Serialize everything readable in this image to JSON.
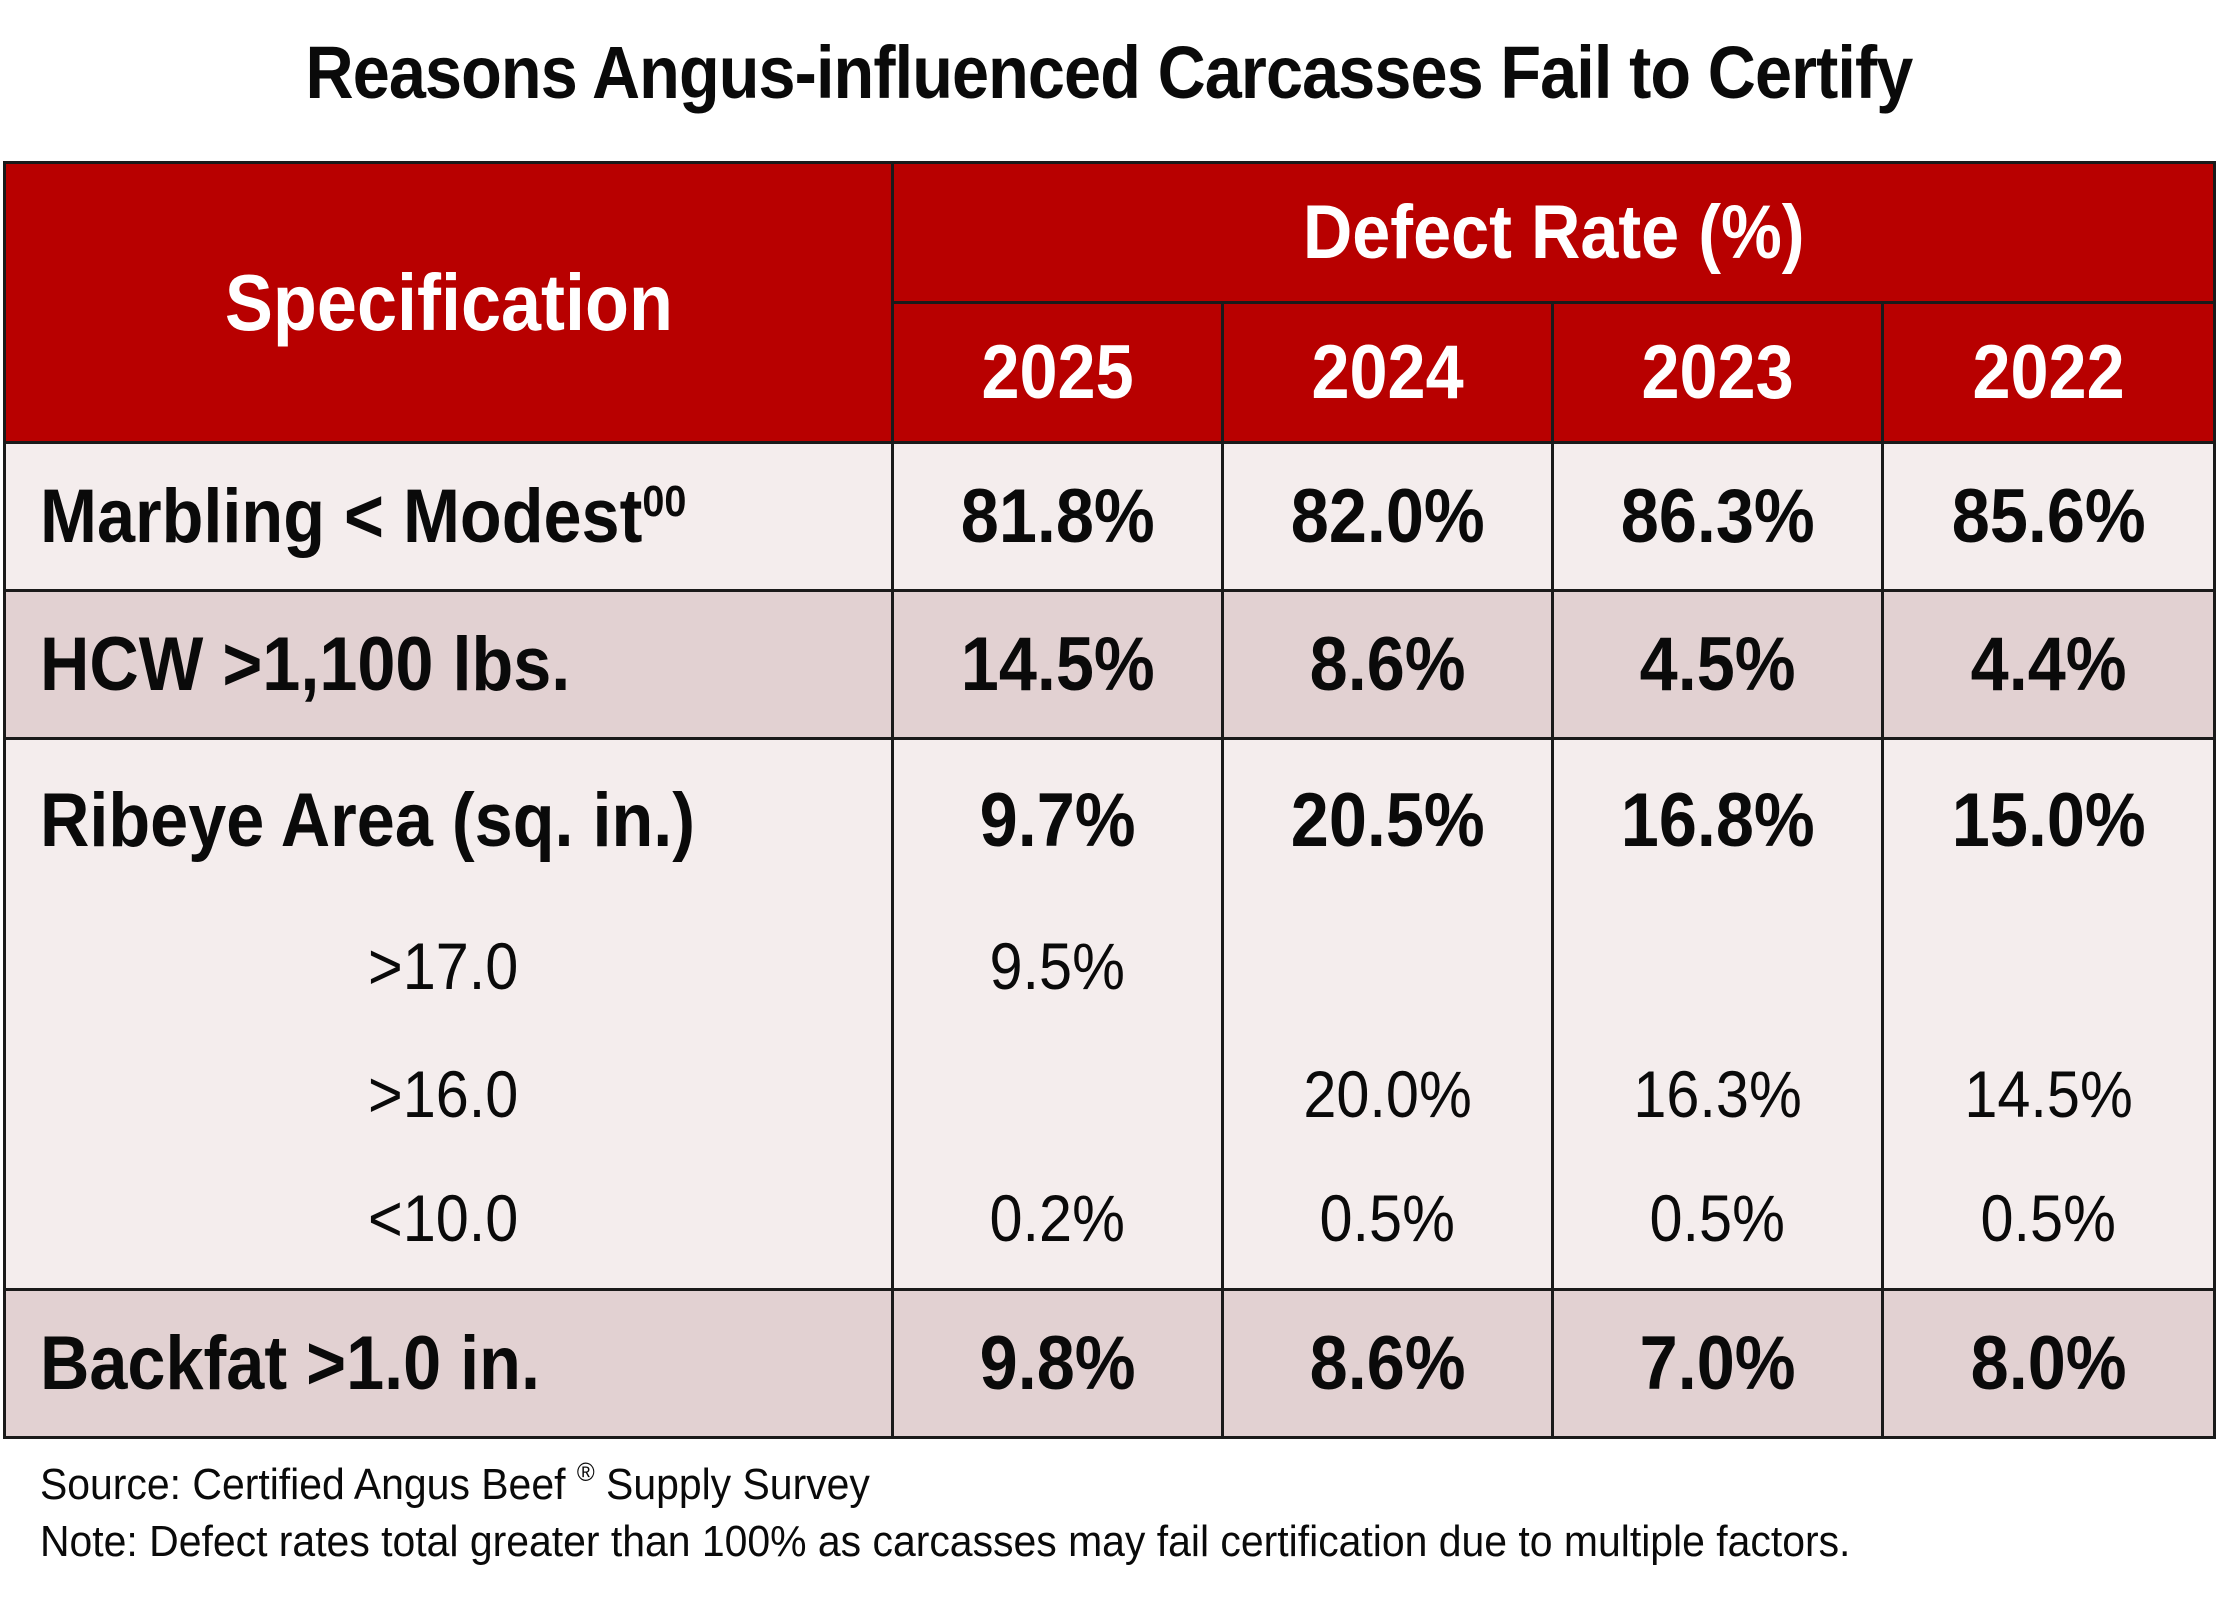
{
  "title": "Reasons Angus-influenced Carcasses Fail to Certify",
  "header": {
    "specification": "Specification",
    "group": "Defect Rate (%)",
    "years": [
      "2025",
      "2024",
      "2023",
      "2022"
    ]
  },
  "rows": {
    "marbling": {
      "label": "Marbling < Modest",
      "superscript": "00",
      "values": [
        "81.8%",
        "82.0%",
        "86.3%",
        "85.6%"
      ]
    },
    "hcw": {
      "label": "HCW >1,100 lbs.",
      "values": [
        "14.5%",
        "8.6%",
        "4.5%",
        "4.4%"
      ]
    },
    "ribeye": {
      "label": "Ribeye Area (sq. in.)",
      "values": [
        "9.7%",
        "20.5%",
        "16.8%",
        "15.0%"
      ],
      "subrows": [
        {
          "label": ">17.0",
          "values": [
            "9.5%",
            "",
            "",
            ""
          ]
        },
        {
          "label": ">16.0",
          "values": [
            "",
            "20.0%",
            "16.3%",
            "14.5%"
          ]
        },
        {
          "label": "<10.0",
          "values": [
            "0.2%",
            "0.5%",
            "0.5%",
            "0.5%"
          ]
        }
      ]
    },
    "backfat": {
      "label": "Backfat >1.0 in.",
      "values": [
        "9.8%",
        "8.6%",
        "7.0%",
        "8.0%"
      ]
    }
  },
  "footer": {
    "source_prefix": "Source: Certified Angus Beef",
    "source_mark": "®",
    "source_suffix": " Supply Survey",
    "note": "Note: Defect rates total greater than 100% as carcasses may fail certification due to multiple factors."
  },
  "colors": {
    "header_bg": "#b80000",
    "row_light": "#f4eded",
    "row_dark": "#e2d1d2"
  }
}
